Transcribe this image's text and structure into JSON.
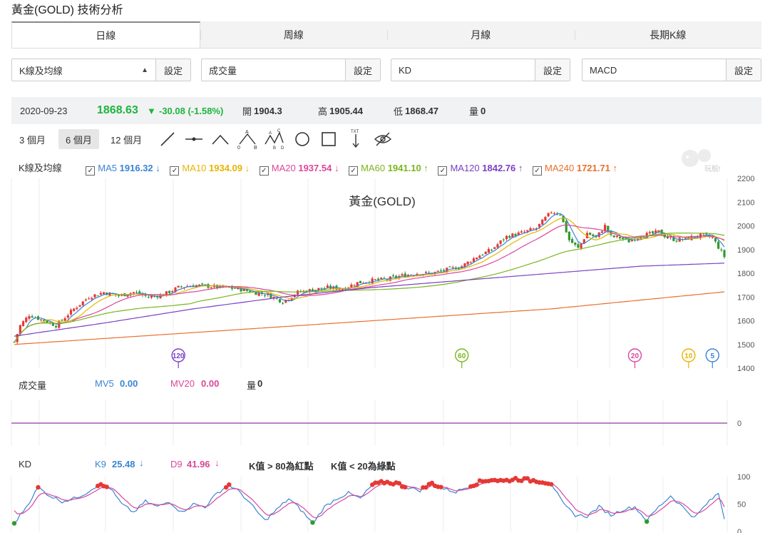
{
  "page": {
    "title": "黃金(GOLD) 技術分析"
  },
  "tabs": [
    {
      "label": "日線",
      "active": true
    },
    {
      "label": "周線",
      "active": false
    },
    {
      "label": "月線",
      "active": false
    },
    {
      "label": "長期K線",
      "active": false
    }
  ],
  "selectors": [
    {
      "value": "K線及均線",
      "button": "設定"
    },
    {
      "value": "成交量",
      "button": "設定"
    },
    {
      "value": "KD",
      "button": "設定"
    },
    {
      "value": "MACD",
      "button": "設定"
    }
  ],
  "quote": {
    "date": "2020-09-23",
    "price": "1868.63",
    "change": "-30.08 (-1.58%)",
    "open_label": "開",
    "open": "1904.3",
    "high_label": "高",
    "high": "1905.44",
    "low_label": "低",
    "low": "1868.47",
    "volume_label": "量",
    "volume": "0"
  },
  "ranges": [
    {
      "label": "3 個月",
      "active": false
    },
    {
      "label": "6 個月",
      "active": true
    },
    {
      "label": "12 個月",
      "active": false
    }
  ],
  "tools": [
    "line-tool-icon",
    "horizontal-line-icon",
    "peak-icon",
    "abc-wave-icon",
    "abcd-wave-icon",
    "circle-icon",
    "rectangle-icon",
    "text-marker-icon",
    "hide-icon"
  ],
  "ma_legend": {
    "label": "K線及均線",
    "items": [
      {
        "name": "MA5",
        "value": "1916.32",
        "arrow": "↓",
        "color": "#3a84d4"
      },
      {
        "name": "MA10",
        "value": "1934.09",
        "arrow": "↓",
        "color": "#e8b400"
      },
      {
        "name": "MA20",
        "value": "1937.54",
        "arrow": "↓",
        "color": "#d9489a"
      },
      {
        "name": "MA60",
        "value": "1941.10",
        "arrow": "↑",
        "color": "#7ab51d"
      },
      {
        "name": "MA120",
        "value": "1842.76",
        "arrow": "↑",
        "color": "#7b3fc4"
      },
      {
        "name": "MA240",
        "value": "1721.71",
        "arrow": "↑",
        "color": "#ea6f2c"
      }
    ]
  },
  "volume_panel": {
    "label": "成交量",
    "mv5_label": "MV5",
    "mv5": "0.00",
    "mv20_label": "MV20",
    "mv20": "0.00",
    "vol_label": "量",
    "vol": "0",
    "axis": [
      "0"
    ]
  },
  "kd_panel": {
    "label": "KD",
    "k_label": "K9",
    "k": "25.48",
    "k_arrow": "↓",
    "d_label": "D9",
    "d": "41.96",
    "d_arrow": "↓",
    "note_red": "K值 > 80為紅點",
    "note_green": "K值 < 20為綠點",
    "axis": [
      "100",
      "50",
      "0"
    ]
  },
  "watermark": "玩股網",
  "chart_data": {
    "type": "candlestick",
    "title": "黃金(GOLD)",
    "ylim": [
      1400,
      2200
    ],
    "yticks": [
      "2200",
      "2100",
      "2000",
      "1900",
      "1800",
      "1700",
      "1600",
      "1500",
      "1400"
    ],
    "colors": {
      "up": "#e53935",
      "down": "#2e9b2e"
    },
    "ma_markers": [
      {
        "label": "120",
        "color": "#7b3fc4"
      },
      {
        "label": "60",
        "color": "#7ab51d"
      },
      {
        "label": "20",
        "color": "#d9489a"
      },
      {
        "label": "10",
        "color": "#e8b400"
      },
      {
        "label": "5",
        "color": "#3a84d4"
      }
    ],
    "anchors_close": [
      [
        0,
        1510
      ],
      [
        2,
        1580
      ],
      [
        5,
        1625
      ],
      [
        10,
        1600
      ],
      [
        14,
        1580
      ],
      [
        20,
        1650
      ],
      [
        25,
        1700
      ],
      [
        30,
        1720
      ],
      [
        35,
        1705
      ],
      [
        40,
        1720
      ],
      [
        45,
        1700
      ],
      [
        50,
        1710
      ],
      [
        55,
        1740
      ],
      [
        60,
        1750
      ],
      [
        65,
        1745
      ],
      [
        70,
        1740
      ],
      [
        75,
        1735
      ],
      [
        80,
        1720
      ],
      [
        85,
        1710
      ],
      [
        90,
        1680
      ],
      [
        95,
        1720
      ],
      [
        100,
        1730
      ],
      [
        105,
        1740
      ],
      [
        110,
        1735
      ],
      [
        115,
        1760
      ],
      [
        120,
        1770
      ],
      [
        125,
        1775
      ],
      [
        130,
        1790
      ],
      [
        135,
        1800
      ],
      [
        140,
        1800
      ],
      [
        145,
        1815
      ],
      [
        150,
        1830
      ],
      [
        155,
        1870
      ],
      [
        160,
        1900
      ],
      [
        165,
        1955
      ],
      [
        170,
        1970
      ],
      [
        175,
        1990
      ],
      [
        180,
        2060
      ],
      [
        183,
        2050
      ],
      [
        186,
        1940
      ],
      [
        189,
        1905
      ],
      [
        192,
        1970
      ],
      [
        195,
        1950
      ],
      [
        198,
        2000
      ],
      [
        200,
        1955
      ],
      [
        203,
        1950
      ],
      [
        206,
        1935
      ],
      [
        210,
        1960
      ],
      [
        213,
        1965
      ],
      [
        216,
        1975
      ],
      [
        219,
        1950
      ],
      [
        222,
        1940
      ],
      [
        225,
        1945
      ],
      [
        228,
        1955
      ],
      [
        231,
        1960
      ],
      [
        234,
        1950
      ],
      [
        236,
        1910
      ],
      [
        238,
        1870
      ]
    ],
    "ma120_line": [
      [
        0,
        1535
      ],
      [
        30,
        1590
      ],
      [
        60,
        1650
      ],
      [
        90,
        1700
      ],
      [
        120,
        1740
      ],
      [
        150,
        1770
      ],
      [
        180,
        1800
      ],
      [
        210,
        1830
      ],
      [
        238,
        1842.76
      ]
    ],
    "ma240_line": [
      [
        0,
        1500
      ],
      [
        60,
        1550
      ],
      [
        120,
        1600
      ],
      [
        180,
        1650
      ],
      [
        238,
        1721.71
      ]
    ],
    "volume": {
      "ylim": [
        0,
        1
      ],
      "values": [
        0
      ]
    },
    "kd_anchors": [
      [
        0,
        15
      ],
      [
        4,
        45
      ],
      [
        8,
        80
      ],
      [
        12,
        65
      ],
      [
        16,
        55
      ],
      [
        20,
        60
      ],
      [
        24,
        70
      ],
      [
        28,
        85
      ],
      [
        32,
        80
      ],
      [
        36,
        50
      ],
      [
        40,
        35
      ],
      [
        44,
        55
      ],
      [
        48,
        45
      ],
      [
        52,
        55
      ],
      [
        56,
        35
      ],
      [
        60,
        50
      ],
      [
        64,
        45
      ],
      [
        68,
        70
      ],
      [
        72,
        85
      ],
      [
        76,
        70
      ],
      [
        80,
        45
      ],
      [
        84,
        20
      ],
      [
        88,
        40
      ],
      [
        92,
        60
      ],
      [
        96,
        40
      ],
      [
        100,
        15
      ],
      [
        104,
        45
      ],
      [
        108,
        60
      ],
      [
        112,
        70
      ],
      [
        116,
        60
      ],
      [
        120,
        85
      ],
      [
        124,
        90
      ],
      [
        128,
        88
      ],
      [
        132,
        80
      ],
      [
        136,
        75
      ],
      [
        140,
        88
      ],
      [
        144,
        78
      ],
      [
        148,
        72
      ],
      [
        152,
        82
      ],
      [
        156,
        90
      ],
      [
        160,
        95
      ],
      [
        164,
        92
      ],
      [
        168,
        96
      ],
      [
        172,
        94
      ],
      [
        176,
        92
      ],
      [
        180,
        88
      ],
      [
        184,
        50
      ],
      [
        188,
        30
      ],
      [
        192,
        28
      ],
      [
        196,
        45
      ],
      [
        200,
        30
      ],
      [
        204,
        40
      ],
      [
        208,
        45
      ],
      [
        212,
        20
      ],
      [
        216,
        45
      ],
      [
        220,
        65
      ],
      [
        224,
        45
      ],
      [
        228,
        25
      ],
      [
        232,
        50
      ],
      [
        236,
        70
      ],
      [
        238,
        25
      ]
    ]
  }
}
